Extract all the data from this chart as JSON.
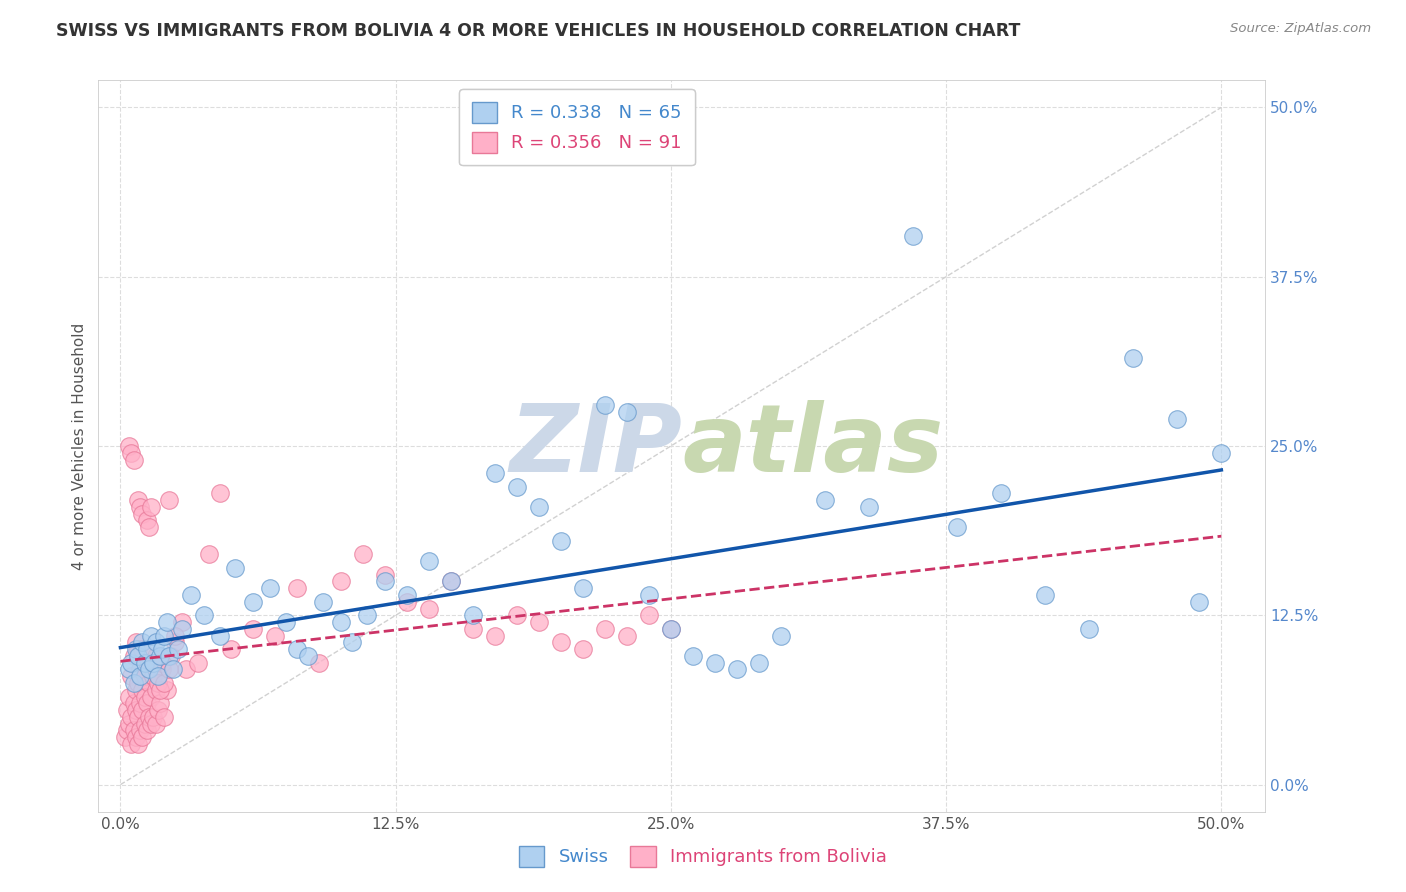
{
  "title": "SWISS VS IMMIGRANTS FROM BOLIVIA 4 OR MORE VEHICLES IN HOUSEHOLD CORRELATION CHART",
  "source_text": "Source: ZipAtlas.com",
  "ylabel": "4 or more Vehicles in Household",
  "x_tick_positions": [
    0.0,
    12.5,
    25.0,
    37.5,
    50.0
  ],
  "y_tick_positions": [
    0.0,
    12.5,
    25.0,
    37.5,
    50.0
  ],
  "x_tick_labels": [
    "0.0%",
    "12.5%",
    "25.0%",
    "37.5%",
    "50.0%"
  ],
  "y_tick_labels": [
    "0.0%",
    "12.5%",
    "25.0%",
    "37.5%",
    "50.0%"
  ],
  "xlim": [
    -1.0,
    52.0
  ],
  "ylim": [
    -2.0,
    52.0
  ],
  "legend_label_swiss": "Swiss",
  "legend_label_bolivia": "Immigrants from Bolivia",
  "R_swiss": 0.338,
  "N_swiss": 65,
  "R_bolivia": 0.356,
  "N_bolivia": 91,
  "swiss_color": "#afd0f0",
  "swiss_edge_color": "#6699cc",
  "bolivia_color": "#ffb0c8",
  "bolivia_edge_color": "#e87898",
  "swiss_line_color": "#1155aa",
  "bolivia_line_color": "#cc3366",
  "ref_line_color": "#cccccc",
  "background_color": "#ffffff",
  "grid_color": "#dddddd",
  "watermark_color": "#ccd8e8",
  "title_fontsize": 12.5,
  "axis_label_fontsize": 11,
  "tick_fontsize": 11,
  "legend_fontsize": 13,
  "swiss_x": [
    0.4,
    0.5,
    0.6,
    0.7,
    0.8,
    0.9,
    1.0,
    1.1,
    1.2,
    1.3,
    1.4,
    1.5,
    1.6,
    1.7,
    1.8,
    1.9,
    2.0,
    2.1,
    2.2,
    2.4,
    2.6,
    2.8,
    3.2,
    3.8,
    4.5,
    5.2,
    6.0,
    6.8,
    7.5,
    8.0,
    8.5,
    9.2,
    10.0,
    10.5,
    11.2,
    12.0,
    13.0,
    14.0,
    15.0,
    16.0,
    17.0,
    18.0,
    19.0,
    20.0,
    21.0,
    22.0,
    23.0,
    24.0,
    25.0,
    26.0,
    27.0,
    28.0,
    29.0,
    30.0,
    32.0,
    34.0,
    36.0,
    38.0,
    40.0,
    42.0,
    44.0,
    46.0,
    48.0,
    49.0,
    50.0
  ],
  "swiss_y": [
    8.5,
    9.0,
    7.5,
    10.0,
    9.5,
    8.0,
    10.5,
    9.0,
    10.0,
    8.5,
    11.0,
    9.0,
    10.5,
    8.0,
    9.5,
    10.0,
    11.0,
    12.0,
    9.5,
    8.5,
    10.0,
    11.5,
    14.0,
    12.5,
    11.0,
    16.0,
    13.5,
    14.5,
    12.0,
    10.0,
    9.5,
    13.5,
    12.0,
    10.5,
    12.5,
    15.0,
    14.0,
    16.5,
    15.0,
    12.5,
    23.0,
    22.0,
    20.5,
    18.0,
    14.5,
    28.0,
    27.5,
    14.0,
    11.5,
    9.5,
    9.0,
    8.5,
    9.0,
    11.0,
    21.0,
    20.5,
    40.5,
    19.0,
    21.5,
    14.0,
    11.5,
    31.5,
    27.0,
    13.5,
    24.5
  ],
  "bolivia_x": [
    0.2,
    0.3,
    0.3,
    0.4,
    0.4,
    0.5,
    0.5,
    0.5,
    0.6,
    0.6,
    0.6,
    0.7,
    0.7,
    0.7,
    0.7,
    0.8,
    0.8,
    0.8,
    0.8,
    0.9,
    0.9,
    0.9,
    1.0,
    1.0,
    1.0,
    1.0,
    1.1,
    1.1,
    1.1,
    1.2,
    1.2,
    1.2,
    1.3,
    1.3,
    1.4,
    1.4,
    1.5,
    1.5,
    1.6,
    1.6,
    1.7,
    1.8,
    1.9,
    2.0,
    2.1,
    2.2,
    2.3,
    2.5,
    2.8,
    3.0,
    3.5,
    4.0,
    4.5,
    5.0,
    6.0,
    7.0,
    8.0,
    9.0,
    10.0,
    11.0,
    12.0,
    13.0,
    14.0,
    15.0,
    16.0,
    17.0,
    18.0,
    19.0,
    20.0,
    21.0,
    22.0,
    23.0,
    24.0,
    25.0,
    0.4,
    0.5,
    0.6,
    0.8,
    0.9,
    1.0,
    1.2,
    1.3,
    1.4,
    1.5,
    1.6,
    1.7,
    1.8,
    1.9,
    2.0,
    2.2,
    2.5
  ],
  "bolivia_y": [
    3.5,
    4.0,
    5.5,
    4.5,
    6.5,
    3.0,
    5.0,
    8.0,
    4.0,
    6.0,
    9.5,
    3.5,
    5.5,
    7.0,
    10.5,
    3.0,
    5.0,
    7.5,
    10.0,
    4.0,
    6.0,
    8.5,
    3.5,
    5.5,
    7.0,
    10.0,
    4.5,
    6.5,
    8.0,
    4.0,
    6.0,
    9.0,
    5.0,
    7.5,
    4.5,
    6.5,
    5.0,
    8.0,
    4.5,
    7.0,
    5.5,
    6.0,
    8.5,
    5.0,
    7.0,
    21.0,
    9.5,
    10.5,
    12.0,
    8.5,
    9.0,
    17.0,
    21.5,
    10.0,
    11.5,
    11.0,
    14.5,
    9.0,
    15.0,
    17.0,
    15.5,
    13.5,
    13.0,
    15.0,
    11.5,
    11.0,
    12.5,
    12.0,
    10.5,
    10.0,
    11.5,
    11.0,
    12.5,
    11.5,
    25.0,
    24.5,
    24.0,
    21.0,
    20.5,
    20.0,
    19.5,
    19.0,
    20.5,
    8.0,
    9.5,
    7.5,
    7.0,
    9.0,
    7.5,
    8.5,
    11.0
  ]
}
